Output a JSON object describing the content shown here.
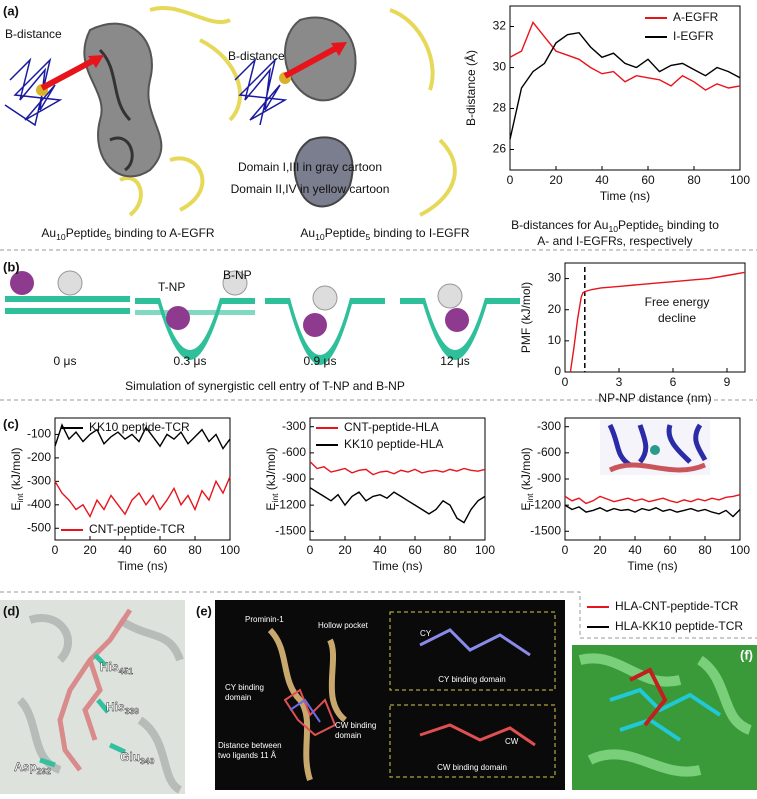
{
  "figure": {
    "a": {
      "label": "(a)",
      "b_distance_left": "B-distance",
      "b_distance_right": "B-distance",
      "domain_notes": [
        "Domain I,III in gray cartoon",
        "Domain II,IV in yellow cartoon"
      ],
      "caption_left": [
        "Au",
        "10",
        "Peptide",
        "5",
        " binding to A-EGFR"
      ],
      "caption_right": [
        "Au",
        "10",
        "Peptide",
        "5",
        " binding to I-EGFR"
      ],
      "chart_caption_1": [
        "B-distances for Au",
        "10",
        "Peptide",
        "5",
        " binding to"
      ],
      "chart_caption_2": "A- and I-EGFRs, respectively"
    },
    "b": {
      "label": "(b)",
      "t_np": "T-NP",
      "b_np": "B-NP",
      "times": [
        "0 μs",
        "0.3 μs",
        "0.9 μs",
        "12 μs"
      ],
      "caption": "Simulation of synergistic cell entry of T-NP and B-NP"
    },
    "c": {
      "label": "(c)"
    },
    "d": {
      "label": "(d)",
      "residues": [
        [
          "His",
          "451"
        ],
        [
          "His",
          "339"
        ],
        [
          "Glu",
          "340"
        ],
        [
          "Asp",
          "292"
        ]
      ]
    },
    "e": {
      "label": "(e)",
      "protein": "Prominin-1",
      "hollow_pocket": "Hollow pocket",
      "cy_domain": [
        "CY binding",
        "domain"
      ],
      "cw_domain": [
        "CW binding",
        "domain"
      ],
      "distance": [
        "Distance between",
        "two ligands 11 Å"
      ],
      "inset_cy_tag": "CY",
      "inset_cy": "CY binding domain",
      "inset_cw_tag": "CW",
      "inset_cw": "CW binding domain"
    },
    "f": {
      "label": "(f)"
    }
  },
  "chart_data": [
    {
      "type": "line",
      "xlabel": "Time (ns)",
      "ylabel": "B-distance (Å)",
      "xlim": [
        0,
        100
      ],
      "xticks": [
        0,
        20,
        40,
        60,
        80,
        100
      ],
      "ylim": [
        25,
        33
      ],
      "yticks": [
        26,
        28,
        30,
        32
      ],
      "legend": "upper right",
      "x": [
        0,
        5,
        10,
        15,
        20,
        25,
        30,
        35,
        40,
        45,
        50,
        55,
        60,
        65,
        70,
        75,
        80,
        85,
        90,
        95,
        100
      ],
      "series": [
        {
          "name": "A-EGFR",
          "color": "#e8141c",
          "values": [
            30.5,
            30.8,
            32.2,
            31.5,
            30.8,
            30.6,
            30.4,
            30.0,
            29.7,
            29.8,
            29.3,
            29.6,
            29.5,
            29.4,
            29.1,
            29.6,
            29.3,
            28.9,
            29.2,
            29.0,
            29.1
          ]
        },
        {
          "name": "I-EGFR",
          "color": "#000000",
          "values": [
            26.5,
            29.0,
            29.8,
            30.2,
            31.2,
            31.6,
            31.7,
            31.0,
            30.5,
            30.7,
            30.2,
            30.0,
            30.4,
            29.8,
            30.1,
            30.2,
            29.9,
            29.6,
            30.0,
            29.8,
            29.5
          ]
        }
      ]
    },
    {
      "type": "line",
      "xlabel": "NP-NP distance (nm)",
      "ylabel": "PMF (kJ/mol)",
      "xlim": [
        0,
        10
      ],
      "xticks": [
        0,
        3,
        6,
        9
      ],
      "ylim": [
        0,
        35
      ],
      "yticks": [
        0,
        10,
        20,
        30
      ],
      "vlines": [
        1.1
      ],
      "annotation": [
        "Free energy",
        "decline"
      ],
      "x": [
        0.3,
        0.5,
        0.7,
        0.9,
        1.0,
        1.2,
        1.5,
        2,
        3,
        4,
        5,
        6,
        7,
        8,
        9,
        10
      ],
      "series": [
        {
          "color": "#e8141c",
          "values": [
            0,
            8,
            17,
            24,
            25.5,
            26,
            26.5,
            27,
            27.5,
            28,
            28.5,
            29,
            29.5,
            30,
            31,
            32
          ]
        }
      ]
    },
    {
      "type": "line",
      "xlabel": "Time (ns)",
      "ylabel": [
        "E",
        "int",
        " (kJ/mol)"
      ],
      "xlim": [
        0,
        100
      ],
      "xticks": [
        0,
        20,
        40,
        60,
        80,
        100
      ],
      "ylim": [
        -550,
        -30
      ],
      "yticks": [
        -500,
        -400,
        -300,
        -200,
        -100
      ],
      "legend": "split",
      "x": [
        0,
        4,
        8,
        12,
        16,
        20,
        24,
        28,
        32,
        36,
        40,
        44,
        48,
        52,
        56,
        60,
        64,
        68,
        72,
        76,
        80,
        84,
        88,
        92,
        96,
        100
      ],
      "series": [
        {
          "name": "KK10 peptide-TCR",
          "color": "#000000",
          "values": [
            -150,
            -60,
            -120,
            -90,
            -130,
            -100,
            -80,
            -140,
            -110,
            -90,
            -120,
            -100,
            -130,
            -70,
            -110,
            -150,
            -100,
            -120,
            -90,
            -140,
            -110,
            -80,
            -130,
            -100,
            -160,
            -120
          ]
        },
        {
          "name": "CNT-peptide-TCR",
          "color": "#e8141c",
          "values": [
            -300,
            -350,
            -380,
            -420,
            -400,
            -450,
            -380,
            -420,
            -360,
            -400,
            -440,
            -380,
            -350,
            -400,
            -360,
            -420,
            -380,
            -330,
            -400,
            -360,
            -420,
            -340,
            -380,
            -300,
            -350,
            -280
          ]
        }
      ]
    },
    {
      "type": "line",
      "xlabel": "Time (ns)",
      "ylabel": [
        "E",
        "int",
        " (kJ/mol)"
      ],
      "xlim": [
        0,
        100
      ],
      "xticks": [
        0,
        20,
        40,
        60,
        80,
        100
      ],
      "ylim": [
        -1600,
        -200
      ],
      "yticks": [
        -1500,
        -1200,
        -900,
        -600,
        -300
      ],
      "legend": "upper left",
      "x": [
        0,
        4,
        8,
        12,
        16,
        20,
        24,
        28,
        32,
        36,
        40,
        44,
        48,
        52,
        56,
        60,
        64,
        68,
        72,
        76,
        80,
        84,
        88,
        92,
        96,
        100
      ],
      "series": [
        {
          "name": "CNT-peptide-HLA",
          "color": "#e8141c",
          "values": [
            -700,
            -780,
            -760,
            -820,
            -800,
            -780,
            -830,
            -800,
            -790,
            -850,
            -820,
            -810,
            -840,
            -800,
            -820,
            -790,
            -830,
            -810,
            -800,
            -820,
            -790,
            -810,
            -780,
            -800,
            -810,
            -790
          ]
        },
        {
          "name": "KK10 peptide-HLA",
          "color": "#000000",
          "values": [
            -1000,
            -1050,
            -1100,
            -1150,
            -1080,
            -1200,
            -1100,
            -1050,
            -1150,
            -1100,
            -1080,
            -1120,
            -1050,
            -1100,
            -1150,
            -1200,
            -1250,
            -1300,
            -1250,
            -1150,
            -1200,
            -1350,
            -1400,
            -1250,
            -1150,
            -1100
          ]
        }
      ]
    },
    {
      "type": "line",
      "xlabel": "Time (ns)",
      "ylabel": [
        "E",
        "int",
        " (kJ/mol)"
      ],
      "xlim": [
        0,
        100
      ],
      "xticks": [
        0,
        20,
        40,
        60,
        80,
        100
      ],
      "ylim": [
        -1600,
        -200
      ],
      "yticks": [
        -1500,
        -1200,
        -900,
        -600,
        -300
      ],
      "legend": "below",
      "x": [
        0,
        4,
        8,
        12,
        16,
        20,
        24,
        28,
        32,
        36,
        40,
        44,
        48,
        52,
        56,
        60,
        64,
        68,
        72,
        76,
        80,
        84,
        88,
        92,
        96,
        100
      ],
      "series": [
        {
          "name": "HLA-CNT-peptide-TCR",
          "color": "#e8141c",
          "values": [
            -1100,
            -1150,
            -1120,
            -1180,
            -1150,
            -1100,
            -1130,
            -1160,
            -1140,
            -1120,
            -1150,
            -1130,
            -1160,
            -1140,
            -1120,
            -1150,
            -1170,
            -1140,
            -1160,
            -1130,
            -1150,
            -1120,
            -1140,
            -1110,
            -1100,
            -1080
          ]
        },
        {
          "name": "HLA-KK10 peptide-TCR",
          "color": "#000000",
          "values": [
            -1200,
            -1250,
            -1220,
            -1280,
            -1260,
            -1230,
            -1270,
            -1240,
            -1260,
            -1250,
            -1280,
            -1240,
            -1260,
            -1230,
            -1270,
            -1250,
            -1280,
            -1260,
            -1240,
            -1270,
            -1250,
            -1280,
            -1300,
            -1260,
            -1330,
            -1250
          ]
        }
      ]
    }
  ]
}
